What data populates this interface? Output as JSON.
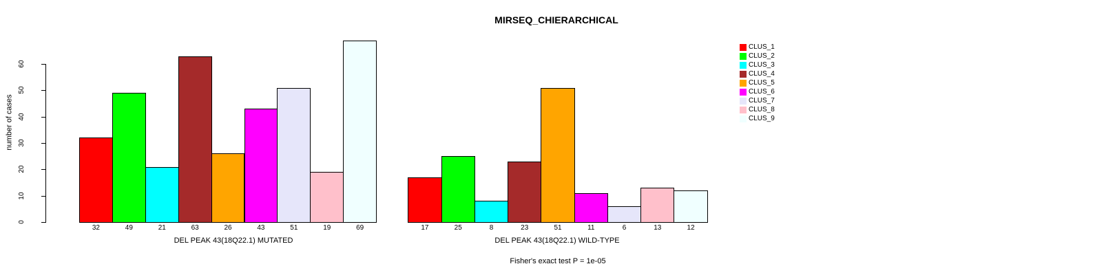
{
  "title": "MIRSEQ_CHIERARCHICAL",
  "subtitle": "Fisher's exact test P = 1e-05",
  "y_axis": {
    "label": "number of cases",
    "ticks": [
      0,
      10,
      20,
      30,
      40,
      50,
      60
    ]
  },
  "palette": [
    "#FF0000",
    "#00FF00",
    "#00FFFF",
    "#A52A2A",
    "#FFA500",
    "#FF00FF",
    "#E6E6FA",
    "#FFC0CB",
    "#F0FFFF"
  ],
  "legend": {
    "position": "right",
    "entries": [
      {
        "label": "CLUS_1",
        "color": "#FF0000"
      },
      {
        "label": "CLUS_2",
        "color": "#00FF00"
      },
      {
        "label": "CLUS_3",
        "color": "#00FFFF"
      },
      {
        "label": "CLUS_4",
        "color": "#A52A2A"
      },
      {
        "label": "CLUS_5",
        "color": "#FFA500"
      },
      {
        "label": "CLUS_6",
        "color": "#FF00FF"
      },
      {
        "label": "CLUS_7",
        "color": "#E6E6FA"
      },
      {
        "label": "CLUS_8",
        "color": "#FFC0CB"
      },
      {
        "label": "CLUS_9",
        "color": "#F0FFFF"
      }
    ]
  },
  "chart_data": [
    {
      "type": "bar",
      "panel": "mutated",
      "xlabel": "DEL PEAK 43(18Q22.1) MUTATED",
      "ylabel": "number of cases",
      "categories": [
        "CLUS_1",
        "CLUS_2",
        "CLUS_3",
        "CLUS_4",
        "CLUS_5",
        "CLUS_6",
        "CLUS_7",
        "CLUS_8",
        "CLUS_9"
      ],
      "values": [
        32,
        49,
        21,
        63,
        26,
        43,
        51,
        19,
        69
      ],
      "colors": [
        "#FF0000",
        "#00FF00",
        "#00FFFF",
        "#A52A2A",
        "#FFA500",
        "#FF00FF",
        "#E6E6FA",
        "#FFC0CB",
        "#F0FFFF"
      ],
      "ylim": [
        0,
        69
      ],
      "yticks": [
        0,
        10,
        20,
        30,
        40,
        50,
        60
      ],
      "grid": false,
      "legend_position": "right"
    },
    {
      "type": "bar",
      "panel": "wild-type",
      "xlabel": "DEL PEAK 43(18Q22.1) WILD-TYPE",
      "ylabel": "",
      "categories": [
        "CLUS_1",
        "CLUS_2",
        "CLUS_3",
        "CLUS_4",
        "CLUS_5",
        "CLUS_6",
        "CLUS_7",
        "CLUS_8",
        "CLUS_9"
      ],
      "values": [
        17,
        25,
        8,
        23,
        51,
        11,
        6,
        13,
        12
      ],
      "colors": [
        "#FF0000",
        "#00FF00",
        "#00FFFF",
        "#A52A2A",
        "#FFA500",
        "#FF00FF",
        "#E6E6FA",
        "#FFC0CB",
        "#F0FFFF"
      ],
      "ylim": [
        0,
        69
      ],
      "yticks": [],
      "grid": false
    }
  ]
}
